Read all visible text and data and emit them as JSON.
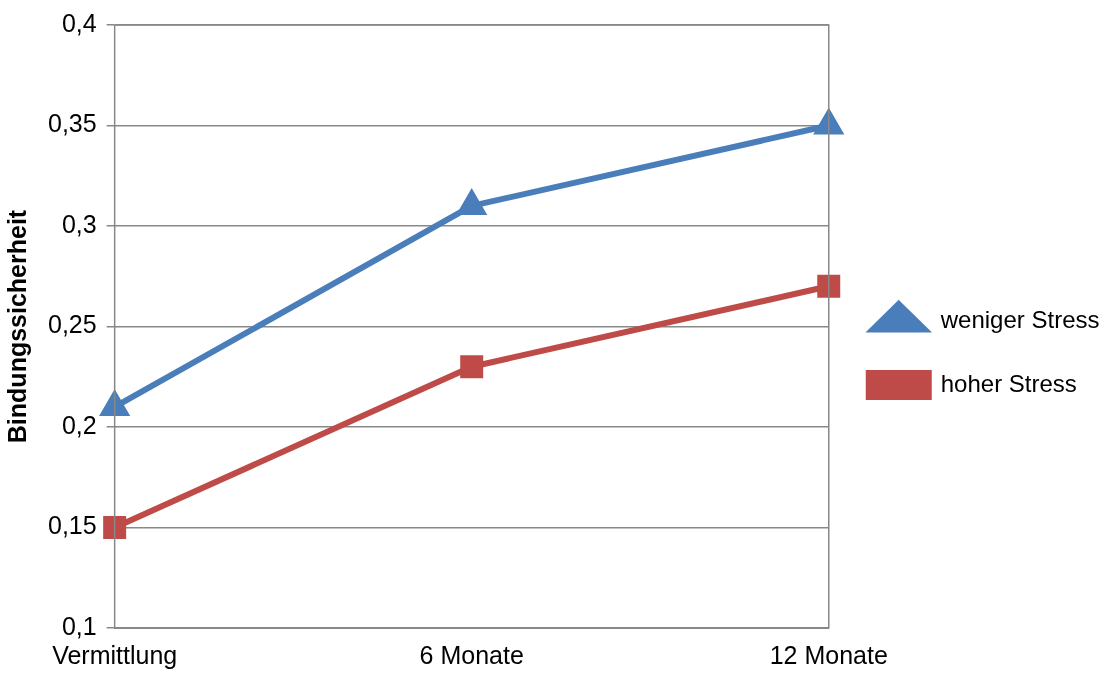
{
  "chart_data": {
    "type": "line",
    "ylabel": "Bindungssicherheit",
    "categories": [
      "Vermittlung",
      "6 Monate",
      "12 Monate"
    ],
    "series": [
      {
        "name": "weniger Stress",
        "color": "#4a7ebb",
        "marker": "triangle",
        "values": [
          0.21,
          0.31,
          0.35
        ]
      },
      {
        "name": "hoher Stress",
        "color": "#be4b48",
        "marker": "square",
        "values": [
          0.15,
          0.23,
          0.27
        ]
      }
    ],
    "ylim": [
      0.1,
      0.4
    ],
    "yticks": [
      {
        "value": 0.1,
        "label": "0,1"
      },
      {
        "value": 0.15,
        "label": "0,15"
      },
      {
        "value": 0.2,
        "label": "0,2"
      },
      {
        "value": 0.25,
        "label": "0,25"
      },
      {
        "value": 0.3,
        "label": "0,3"
      },
      {
        "value": 0.35,
        "label": "0,35"
      },
      {
        "value": 0.4,
        "label": "0,4"
      }
    ],
    "grid": "y",
    "legend": "right"
  }
}
